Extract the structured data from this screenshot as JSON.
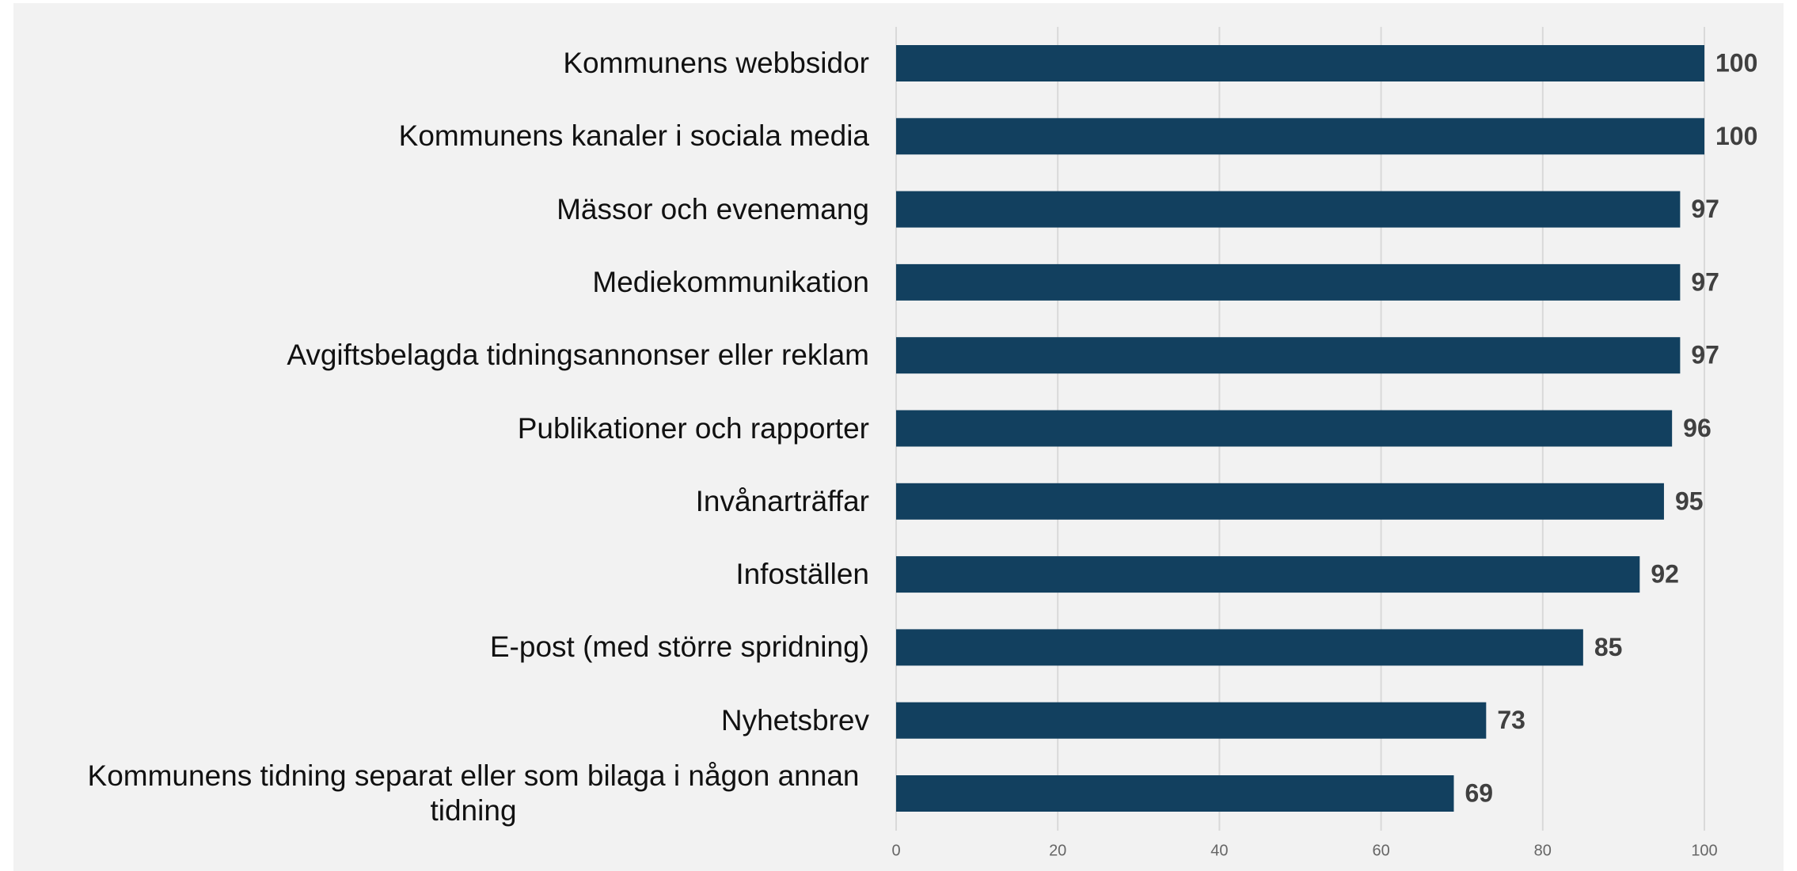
{
  "chart_data": {
    "type": "barh",
    "categories": [
      "Kommunens webbsidor",
      "Kommunens kanaler i sociala media",
      "Mässor och evenemang",
      "Mediekommunikation",
      "Avgiftsbelagda tidningsannonser eller reklam",
      "Publikationer och rapporter",
      "Invånarträffar",
      "Infoställen",
      "E-post (med större spridning)",
      "Nyhetsbrev",
      "Kommunens tidning separat eller som bilaga i någon annan tidning"
    ],
    "values": [
      100,
      100,
      97,
      97,
      97,
      96,
      95,
      92,
      85,
      73,
      69
    ],
    "color": "#12405f",
    "xlim": [
      0,
      100
    ],
    "xticks": [
      0,
      20,
      40,
      60,
      80,
      100
    ],
    "grid": true
  }
}
